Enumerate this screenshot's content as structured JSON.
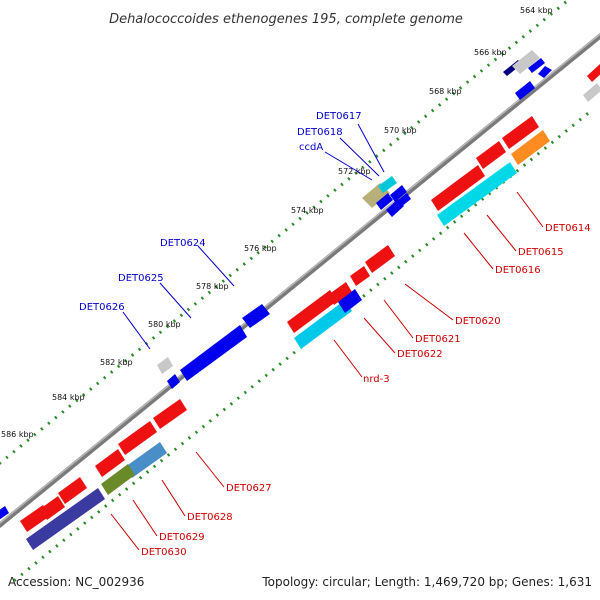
{
  "title": "Dehalococcoides ethenogenes 195, complete genome",
  "footer": {
    "accession": "Accession: NC_002936",
    "summary": "Topology: circular; Length: 1,469,720 bp; Genes: 1,631"
  },
  "colors": {
    "backbone": "#7a7a7a",
    "ruler_dots": "#2a8a2a",
    "forward_label": "#0000cc",
    "reverse_label": "#cc0000",
    "forward_gene": "#0000ee",
    "reverse_gene": "#ee1111"
  },
  "ticks": [
    {
      "kbp": 564,
      "label": "564 kbp"
    },
    {
      "kbp": 566,
      "label": "566 kbp"
    },
    {
      "kbp": 568,
      "label": "568 kbp"
    },
    {
      "kbp": 570,
      "label": "570 kbp"
    },
    {
      "kbp": 572,
      "label": "572 kbp"
    },
    {
      "kbp": 574,
      "label": "574 kbp"
    },
    {
      "kbp": 576,
      "label": "576 kbp"
    },
    {
      "kbp": 578,
      "label": "578 kbp"
    },
    {
      "kbp": 580,
      "label": "580 kbp"
    },
    {
      "kbp": 582,
      "label": "582 kbp"
    },
    {
      "kbp": 584,
      "label": "584 kbp"
    },
    {
      "kbp": 586,
      "label": "586 kbp"
    }
  ],
  "forward_labels": [
    {
      "name": "DET0617",
      "text": "DET0617"
    },
    {
      "name": "DET0618",
      "text": "DET0618"
    },
    {
      "name": "ccdA",
      "text": "ccdA"
    },
    {
      "name": "DET0624",
      "text": "DET0624"
    },
    {
      "name": "DET0625",
      "text": "DET0625"
    },
    {
      "name": "DET0626",
      "text": "DET0626"
    }
  ],
  "reverse_labels": [
    {
      "name": "DET0614",
      "text": "DET0614"
    },
    {
      "name": "DET0615",
      "text": "DET0615"
    },
    {
      "name": "DET0616",
      "text": "DET0616"
    },
    {
      "name": "DET0620",
      "text": "DET0620"
    },
    {
      "name": "DET0621",
      "text": "DET0621"
    },
    {
      "name": "DET0622",
      "text": "DET0622"
    },
    {
      "name": "nrd-3",
      "text": "nrd-3"
    },
    {
      "name": "DET0627",
      "text": "DET0627"
    },
    {
      "name": "DET0628",
      "text": "DET0628"
    },
    {
      "name": "DET0629",
      "text": "DET0629"
    },
    {
      "name": "DET0630",
      "text": "DET0630"
    }
  ]
}
